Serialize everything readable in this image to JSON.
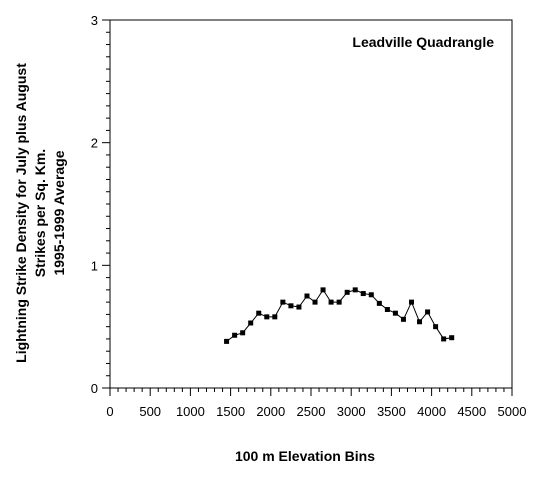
{
  "chart_data": {
    "type": "line",
    "annotation": "Leadville  Quadrangle",
    "xlabel": "100 m Elevation Bins",
    "ylabel_lines": [
      "Lightning Strike Density for July plus August",
      "Strikes per Sq. Km.",
      "1995-1999 Average"
    ],
    "xlim": [
      0,
      5000
    ],
    "ylim": [
      0,
      3
    ],
    "x_ticks": [
      0,
      500,
      1000,
      1500,
      2000,
      2500,
      3000,
      3500,
      4000,
      4500,
      5000
    ],
    "y_ticks": [
      0,
      1,
      2,
      3
    ],
    "grid": false,
    "marker": "square",
    "line_color": "#000000",
    "series": [
      {
        "x": [
          1450,
          1550,
          1650,
          1750,
          1850,
          1950,
          2050,
          2150,
          2250,
          2350,
          2450,
          2550,
          2650,
          2750,
          2850,
          2950,
          3050,
          3150,
          3250,
          3350,
          3450,
          3550,
          3650,
          3750,
          3850,
          3950,
          4050,
          4150,
          4250
        ],
        "values": [
          0.38,
          0.43,
          0.45,
          0.53,
          0.61,
          0.58,
          0.58,
          0.7,
          0.67,
          0.66,
          0.75,
          0.7,
          0.8,
          0.7,
          0.7,
          0.78,
          0.8,
          0.77,
          0.76,
          0.69,
          0.64,
          0.61,
          0.56,
          0.7,
          0.54,
          0.62,
          0.5,
          0.4,
          0.41
        ]
      }
    ]
  }
}
